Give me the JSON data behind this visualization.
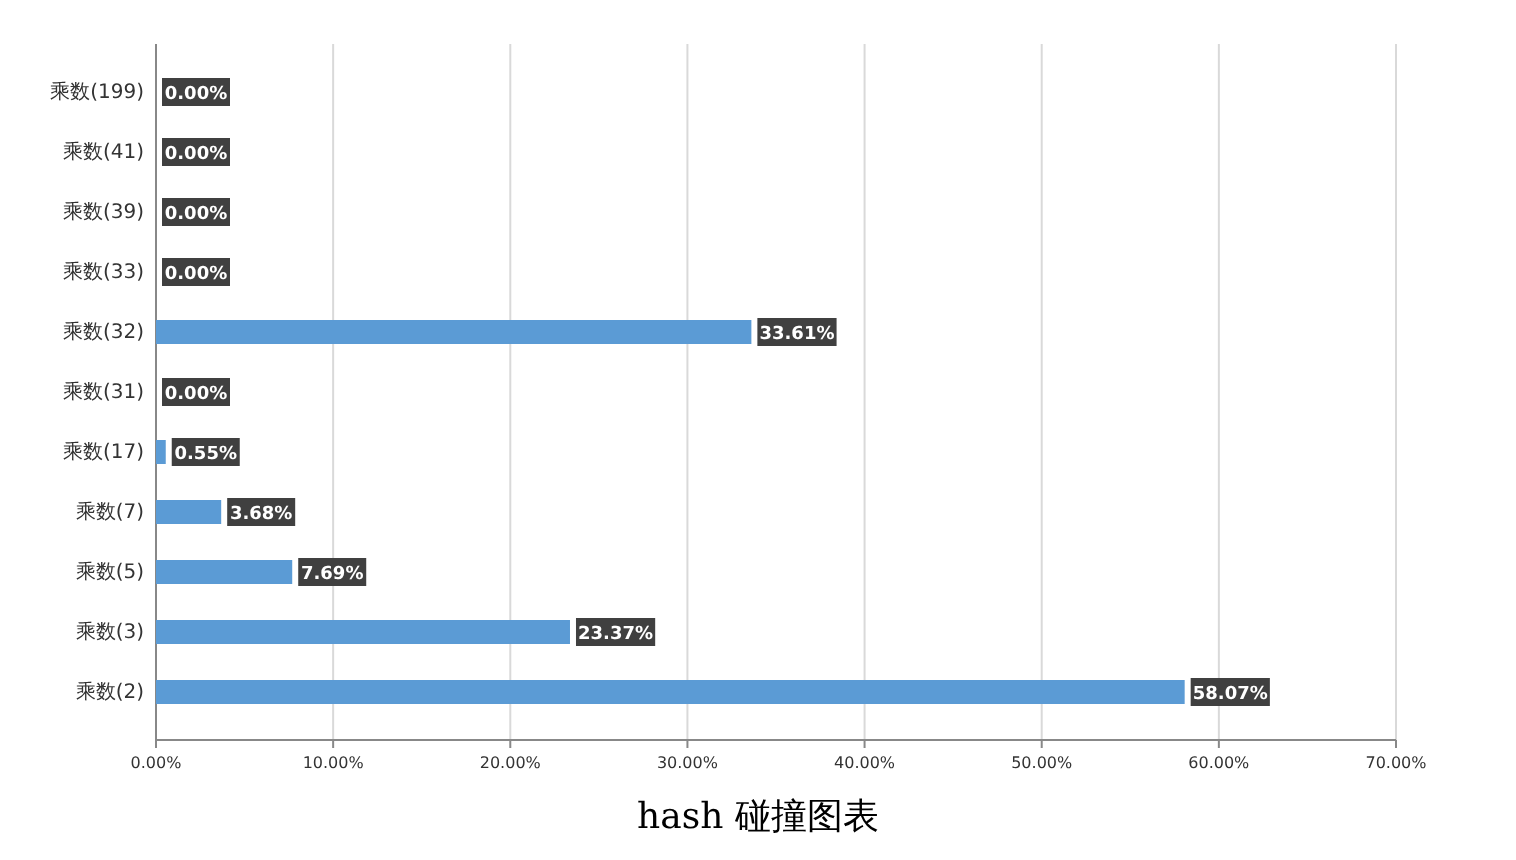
{
  "chart_data": {
    "type": "bar",
    "orientation": "horizontal",
    "categories": [
      "乘数(199)",
      "乘数(41)",
      "乘数(39)",
      "乘数(33)",
      "乘数(32)",
      "乘数(31)",
      "乘数(17)",
      "乘数(7)",
      "乘数(5)",
      "乘数(3)",
      "乘数(2)"
    ],
    "values": [
      0,
      0,
      0,
      0,
      33.61,
      0,
      0.55,
      3.68,
      7.69,
      23.37,
      58.07
    ],
    "value_labels": [
      "0.00%",
      "0.00%",
      "0.00%",
      "0.00%",
      "33.61%",
      "0.00%",
      "0.55%",
      "3.68%",
      "7.69%",
      "23.37%",
      "58.07%"
    ],
    "color": "#5b9bd5",
    "xlim": [
      0,
      70
    ],
    "xticks": [
      {
        "value": 0,
        "label": "0.00%"
      },
      {
        "value": 10,
        "label": "10.00%"
      },
      {
        "value": 20,
        "label": "20.00%"
      },
      {
        "value": 30,
        "label": "30.00%"
      },
      {
        "value": 40,
        "label": "40.00%"
      },
      {
        "value": 50,
        "label": "50.00%"
      },
      {
        "value": 60,
        "label": "60.00%"
      },
      {
        "value": 70,
        "label": "70.00%"
      }
    ],
    "grid": "x",
    "annotations": [
      "hash 碰撞图表"
    ]
  }
}
